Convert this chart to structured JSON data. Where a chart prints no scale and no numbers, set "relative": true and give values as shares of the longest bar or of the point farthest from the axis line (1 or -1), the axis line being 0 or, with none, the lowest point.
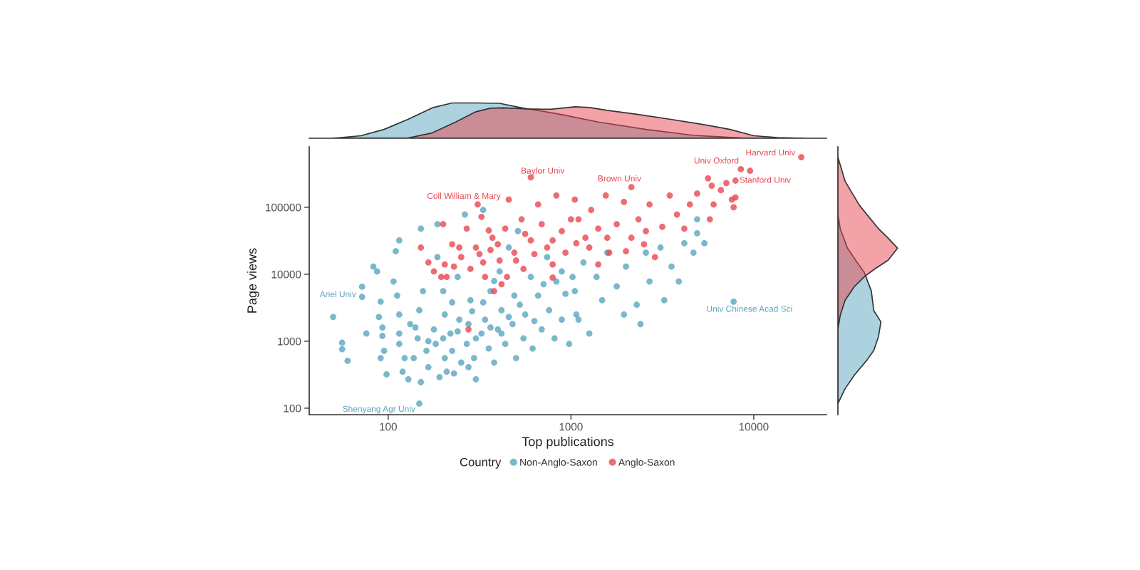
{
  "chart_data": [
    {
      "type": "scatter",
      "xlabel": "Top publications",
      "ylabel": "Page views",
      "legend_title": "Country",
      "legend": "bottom",
      "marker": "circle",
      "log": "xy",
      "xlim": [
        37,
        25000
      ],
      "ylim": [
        80,
        800000
      ],
      "xticks": [
        100,
        1000,
        10000
      ],
      "yticks": [
        100,
        1000,
        10000,
        100000
      ],
      "series": [
        {
          "name": "Non-Anglo-Saxon",
          "color": "#5aa5c0",
          "x": [
            50,
            56,
            56,
            60,
            72,
            72,
            83,
            87,
            76,
            89,
            91,
            93,
            95,
            91,
            93,
            98,
            107,
            110,
            115,
            112,
            115,
            115,
            123,
            120,
            132,
            129,
            138,
            148,
            151,
            145,
            148,
            151,
            155,
            162,
            166,
            178,
            182,
            186,
            186,
            200,
            204,
            204,
            209,
            219,
            224,
            240,
            245,
            251,
            263,
            269,
            275,
            282,
            295,
            302,
            324,
            331,
            339,
            355,
            363,
            380,
            398,
            407,
            417,
            437,
            457,
            479,
            490,
            501,
            513,
            550,
            562,
            603,
            617,
            661,
            692,
            741,
            759,
            813,
            832,
            891,
            933,
            977,
            1020,
            1070,
            1050,
            1100,
            1170,
            1260,
            1380,
            1480,
            1580,
            1780,
            1950,
            2000,
            2290,
            2400,
            2570,
            2690,
            3090,
            3240,
            3550,
            3890,
            4170,
            4680,
            4900,
            5370,
            7760,
            4900,
            191,
            229,
            275,
            200,
            240,
            302,
            363,
            417,
            457,
            525,
            631,
            288,
            331,
            224,
            141,
            166,
            708,
            891,
            380,
            115
          ],
          "values": [
            2300,
            950,
            760,
            510,
            4600,
            6500,
            13000,
            11000,
            1300,
            2300,
            3900,
            1200,
            720,
            560,
            1600,
            320,
            7800,
            22000,
            32000,
            4800,
            2500,
            910,
            560,
            350,
            1800,
            270,
            560,
            117,
            245,
            1100,
            2900,
            48000,
            5600,
            720,
            410,
            1500,
            910,
            56000,
            18000,
            5600,
            2500,
            560,
            350,
            1300,
            720,
            9100,
            2100,
            480,
            78000,
            910,
            1800,
            4100,
            560,
            270,
            1300,
            91000,
            2100,
            780,
            5600,
            480,
            1500,
            11000,
            2900,
            910,
            25000,
            1800,
            4800,
            560,
            44000,
            1100,
            2500,
            9100,
            780,
            4800,
            1500,
            18000,
            2900,
            1100,
            7800,
            2100,
            5100,
            910,
            9100,
            2500,
            5600,
            2100,
            15000,
            1300,
            9100,
            4100,
            21000,
            6600,
            2500,
            13000,
            3500,
            1800,
            21000,
            7800,
            25000,
            4100,
            13000,
            7800,
            29000,
            21000,
            41000,
            29000,
            3900,
            66000,
            290,
            330,
            410,
            1100,
            1400,
            1100,
            1600,
            1300,
            2300,
            3500,
            2000,
            2800,
            3800,
            3800,
            1600,
            1000,
            7100,
            11000,
            7900,
            1300
          ]
        },
        {
          "name": "Anglo-Saxon",
          "color": "#e8474f",
          "x": [
            166,
            178,
            195,
            204,
            209,
            229,
            245,
            251,
            269,
            282,
            302,
            324,
            331,
            339,
            363,
            372,
            380,
            407,
            437,
            447,
            457,
            490,
            537,
            550,
            603,
            661,
            692,
            741,
            794,
            832,
            891,
            933,
            1000,
            1070,
            275,
            151,
            200,
            603,
            309,
            1050,
            1100,
            1200,
            1290,
            1410,
            1550,
            1620,
            1780,
            1950,
            2140,
            2340,
            2570,
            2690,
            2880,
            3160,
            3470,
            3800,
            4170,
            4470,
            4900,
            5620,
            5890,
            6610,
            7590,
            7760,
            7940,
            6030,
            7080,
            9550,
            5750,
            18200,
            8500,
            7940,
            2140,
            316,
            398,
            501,
            631,
            794,
            1260,
            1580,
            2000,
            224,
            417,
            794,
            1410,
            562,
            2510,
            355
          ],
          "values": [
            15000,
            11000,
            9100,
            14000,
            9100,
            13000,
            25000,
            18000,
            48000,
            12000,
            25000,
            72000,
            15000,
            9100,
            23000,
            35000,
            5600,
            16000,
            48000,
            9100,
            130000,
            21000,
            66000,
            12000,
            32000,
            110000,
            56000,
            25000,
            14000,
            150000,
            44000,
            21000,
            66000,
            29000,
            1500,
            25000,
            56000,
            280000,
            110000,
            130000,
            66000,
            35000,
            91000,
            48000,
            150000,
            21000,
            56000,
            120000,
            35000,
            66000,
            44000,
            110000,
            18000,
            51000,
            150000,
            78000,
            48000,
            110000,
            160000,
            270000,
            210000,
            180000,
            130000,
            100000,
            140000,
            110000,
            230000,
            350000,
            66000,
            560000,
            370000,
            250000,
            200000,
            20000,
            28000,
            16000,
            20000,
            32000,
            25000,
            35000,
            22000,
            28000,
            7100,
            8900,
            14000,
            40000,
            28000,
            45000
          ]
        }
      ],
      "annotations": [
        {
          "text": "Harvard Univ",
          "x": 18200,
          "y": 560000
        },
        {
          "text": "Univ Oxford",
          "x": 8500,
          "y": 370000
        },
        {
          "text": "Stanford Univ",
          "x": 7940,
          "y": 250000
        },
        {
          "text": "Brown Univ",
          "x": 2140,
          "y": 200000
        },
        {
          "text": "Baylor Univ",
          "x": 603,
          "y": 280000
        },
        {
          "text": "Coll William & Mary",
          "x": 309,
          "y": 110000
        },
        {
          "text": "Ariel Univ",
          "x": 72,
          "y": 4600
        },
        {
          "text": "Univ Chinese Acad Sci",
          "x": 7760,
          "y": 3900
        },
        {
          "text": "Shenyang Agr Univ",
          "x": 148,
          "y": 117
        }
      ]
    },
    {
      "type": "area",
      "relative": true,
      "log": "x",
      "xlim": [
        37,
        25000
      ],
      "tick_labels": false,
      "series": [
        {
          "color": "#5aa5c0",
          "x": [
            50,
            71,
            95,
            129,
            174,
            224,
            302,
            407,
            550,
            692,
            912,
            1410,
            2570,
            4680,
            8510,
            18600
          ],
          "values": [
            0,
            0.07,
            0.25,
            0.54,
            0.86,
            1.0,
            1.0,
            0.99,
            0.85,
            0.77,
            0.66,
            0.46,
            0.25,
            0.08,
            0.01,
            0
          ]
        },
        {
          "color": "#e8474f",
          "x": [
            50,
            129,
            174,
            234,
            302,
            363,
            427,
            575,
            776,
            1050,
            1260,
            1580,
            2290,
            3470,
            5250,
            7410,
            10000,
            13500,
            18600
          ],
          "values": [
            0,
            0.01,
            0.15,
            0.46,
            0.75,
            0.85,
            0.86,
            0.83,
            0.82,
            0.89,
            0.87,
            0.79,
            0.68,
            0.54,
            0.39,
            0.25,
            0.07,
            0.02,
            0
          ]
        }
      ]
    },
    {
      "type": "area",
      "relative": true,
      "orientation": "horizontal",
      "log": "y",
      "ylim": [
        80,
        800000
      ],
      "tick_labels": false,
      "series": [
        {
          "color": "#5aa5c0",
          "x": [
            77600,
            47900,
            24500,
            15100,
            10700,
            5620,
            2880,
            1950,
            1170,
            724,
            513,
            316,
            195,
            117
          ],
          "values": [
            0,
            0.04,
            0.16,
            0.32,
            0.44,
            0.56,
            0.6,
            0.72,
            0.68,
            0.6,
            0.48,
            0.28,
            0.12,
            0
          ]
        },
        {
          "color": "#e8474f",
          "x": [
            562000,
            245000,
            107000,
            47900,
            34700,
            24500,
            16200,
            11700,
            9120,
            6610,
            4070,
            2450,
            1510
          ],
          "values": [
            0,
            0.12,
            0.36,
            0.68,
            0.84,
            1.0,
            0.84,
            0.6,
            0.44,
            0.28,
            0.12,
            0.04,
            0
          ]
        }
      ]
    }
  ]
}
